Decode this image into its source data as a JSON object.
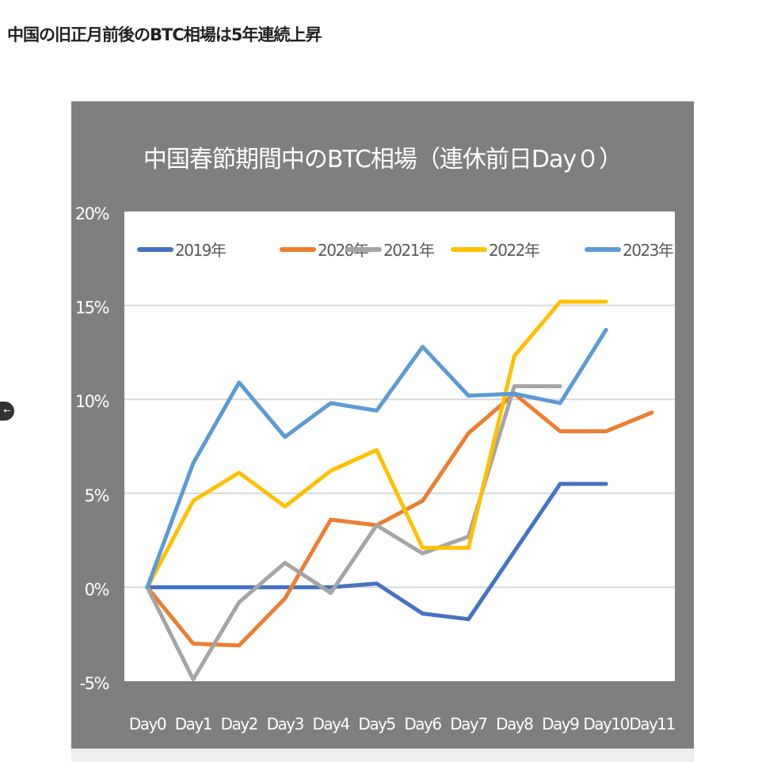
{
  "page": {
    "heading": "中国の旧正月前後のBTC相場は5年連続上昇",
    "back_button_icon": "arrow-left-icon",
    "back_button_glyph": "←"
  },
  "chart_data": {
    "type": "line",
    "title": "中国春節期間中のBTC相場（連休前日Day０）",
    "xlabel": "",
    "ylabel": "",
    "categories": [
      "Day0",
      "Day1",
      "Day2",
      "Day3",
      "Day4",
      "Day5",
      "Day6",
      "Day7",
      "Day8",
      "Day9",
      "Day10",
      "Day11"
    ],
    "y_ticks": [
      "20%",
      "15%",
      "10%",
      "5%",
      "0%",
      "-5%"
    ],
    "ylim": [
      -5,
      20
    ],
    "y_tick_step": 5,
    "grid": true,
    "legend_position": "top-inside",
    "series": [
      {
        "name": "2019年",
        "color": "#4472C4",
        "values": [
          0,
          0,
          0,
          0,
          0,
          0.2,
          -1.4,
          -1.7,
          1.9,
          5.5,
          5.5,
          null
        ]
      },
      {
        "name": "2020年",
        "color": "#ED7D31",
        "values": [
          0,
          -3.0,
          -3.1,
          -0.6,
          3.6,
          3.3,
          4.6,
          8.2,
          10.3,
          8.3,
          8.3,
          9.3
        ]
      },
      {
        "name": "2021年",
        "color": "#A5A5A5",
        "values": [
          0,
          -4.9,
          -0.8,
          1.3,
          -0.3,
          3.3,
          1.8,
          2.7,
          10.7,
          10.7,
          null,
          null
        ]
      },
      {
        "name": "2022年",
        "color": "#FFC000",
        "values": [
          0,
          4.6,
          6.1,
          4.3,
          6.2,
          7.3,
          2.1,
          2.1,
          12.3,
          15.2,
          15.2,
          null
        ]
      },
      {
        "name": "2023年",
        "color": "#5B9BD5",
        "values": [
          0,
          6.6,
          10.9,
          8.0,
          9.8,
          9.4,
          12.8,
          10.2,
          10.3,
          9.8,
          13.7,
          null
        ]
      }
    ]
  },
  "colors": {
    "frame": "#7f7f7f",
    "plot_bg": "#ffffff",
    "gridline": "#d9d9d9",
    "axis_text": "#ffffff",
    "legend_text": "#595959"
  }
}
